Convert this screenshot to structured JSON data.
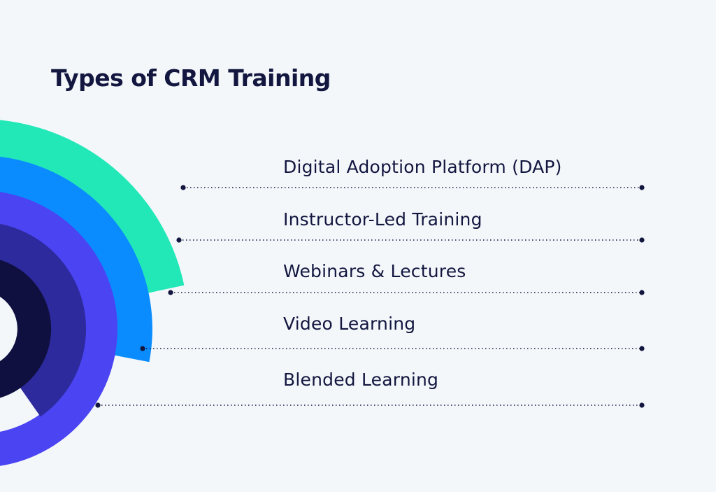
{
  "title": "Types of CRM Training",
  "items": [
    {
      "label": "Digital Adoption Platform (DAP)",
      "color": "#22e8b8"
    },
    {
      "label": "Instructor-Led Training",
      "color": "#0a8cff"
    },
    {
      "label": "Webinars & Lectures",
      "color": "#4b44f2"
    },
    {
      "label": "Video Learning",
      "color": "#2d2a9e"
    },
    {
      "label": "Blended Learning",
      "color": "#0f1040"
    }
  ],
  "leader_color": "#13163f",
  "background": "#f3f7fa"
}
